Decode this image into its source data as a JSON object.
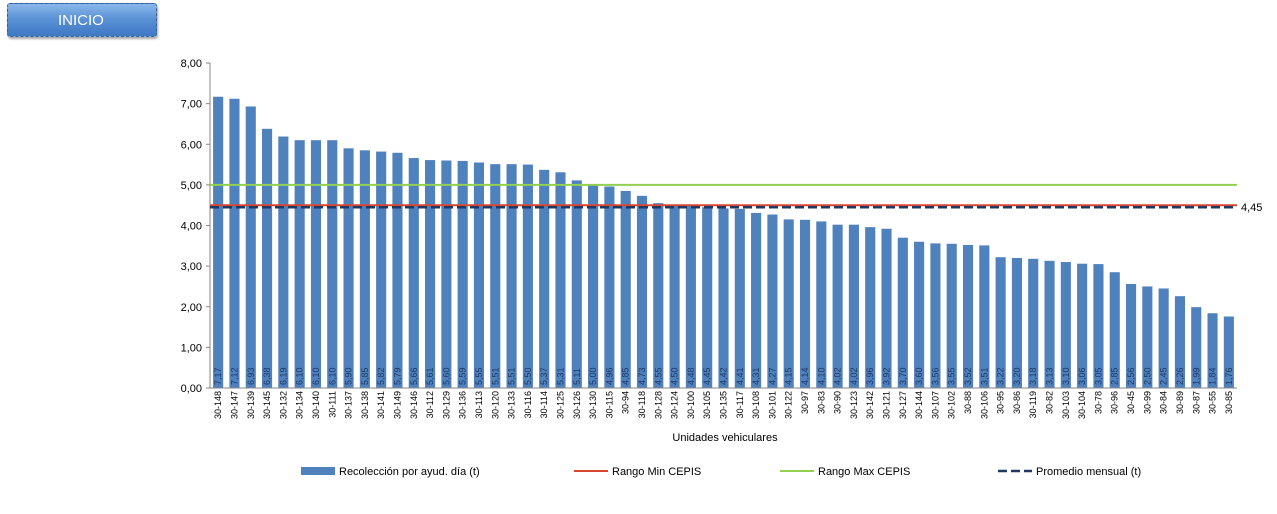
{
  "button": {
    "label": "INICIO"
  },
  "colors": {
    "bars": "#4f81bd",
    "min_line": "#d7472f",
    "max_line": "#92d050",
    "avg_line": "#1f3864"
  },
  "chart_data": {
    "type": "bar",
    "xlabel": "Unidades vehiculares",
    "ylim": [
      0,
      8
    ],
    "yticks": [
      "0,00",
      "1,00",
      "2,00",
      "3,00",
      "4,00",
      "5,00",
      "6,00",
      "7,00",
      "8,00"
    ],
    "categories": [
      "30-148",
      "30-147",
      "30-139",
      "30-145",
      "30-132",
      "30-134",
      "30-140",
      "30-111",
      "30-137",
      "30-138",
      "30-141",
      "30-149",
      "30-146",
      "30-112",
      "30-129",
      "30-136",
      "30-113",
      "30-120",
      "30-133",
      "30-116",
      "30-114",
      "30-125",
      "30-126",
      "30-130",
      "30-115",
      "30-94",
      "30-118",
      "30-128",
      "30-124",
      "30-100",
      "30-105",
      "30-135",
      "30-117",
      "30-108",
      "30-101",
      "30-122",
      "30-97",
      "30-83",
      "30-90",
      "30-123",
      "30-142",
      "30-121",
      "30-127",
      "30-144",
      "30-107",
      "30-102",
      "30-88",
      "30-106",
      "30-95",
      "30-86",
      "30-119",
      "30-82",
      "30-103",
      "30-104",
      "30-78",
      "30-96",
      "30-45",
      "30-99",
      "30-84",
      "30-89",
      "30-87",
      "30-55",
      "30-85"
    ],
    "series": [
      {
        "name": "Recolección por ayud. día (t)",
        "values": [
          7.17,
          7.12,
          6.93,
          6.38,
          6.19,
          6.1,
          6.1,
          6.1,
          5.9,
          5.85,
          5.82,
          5.79,
          5.66,
          5.61,
          5.6,
          5.59,
          5.55,
          5.51,
          5.51,
          5.5,
          5.37,
          5.31,
          5.11,
          5.0,
          4.96,
          4.85,
          4.73,
          4.55,
          4.5,
          4.48,
          4.45,
          4.42,
          4.41,
          4.31,
          4.27,
          4.15,
          4.14,
          4.1,
          4.02,
          4.02,
          3.96,
          3.92,
          3.7,
          3.6,
          3.56,
          3.55,
          3.52,
          3.51,
          3.22,
          3.2,
          3.18,
          3.13,
          3.1,
          3.06,
          3.05,
          2.85,
          2.56,
          2.5,
          2.45,
          2.26,
          1.99,
          1.84,
          1.76
        ],
        "data_labels": [
          "7,17",
          "7,12",
          "6,93",
          "6,38",
          "6,19",
          "6,10",
          "6,10",
          "6,10",
          "5,90",
          "5,85",
          "5,82",
          "5,79",
          "5,66",
          "5,61",
          "5,60",
          "5,59",
          "5,55",
          "5,51",
          "5,51",
          "5,50",
          "5,37",
          "5,31",
          "5,11",
          "5,00",
          "4,96",
          "4,85",
          "4,73",
          "4,55",
          "4,50",
          "4,48",
          "4,45",
          "4,42",
          "4,41",
          "4,31",
          "4,27",
          "4,15",
          "4,14",
          "4,10",
          "4,02",
          "4,02",
          "3,96",
          "3,92",
          "3,70",
          "3,60",
          "3,56",
          "3,55",
          "3,52",
          "3,51",
          "3,22",
          "3,20",
          "3,18",
          "3,13",
          "3,10",
          "3,06",
          "3,05",
          "2,85",
          "2,56",
          "2,50",
          "2,45",
          "2,26",
          "1,99",
          "1,84",
          "1,76"
        ]
      },
      {
        "name": "Rango Min CEPIS",
        "value": 4.5
      },
      {
        "name": "Rango Max CEPIS",
        "value": 5.0
      },
      {
        "name": "Promedio mensual (t)",
        "value": 4.45,
        "label": "4,45"
      }
    ],
    "legend_position": "bottom"
  }
}
